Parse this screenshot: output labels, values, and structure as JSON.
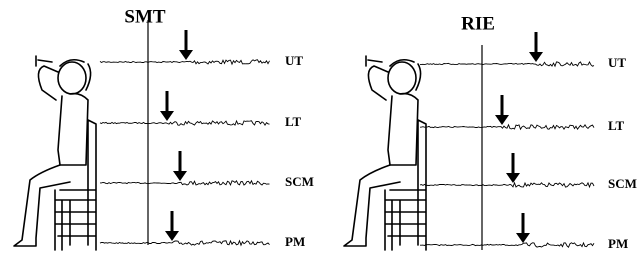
{
  "panels": [
    {
      "title": "SMT",
      "muscles": [
        "UT",
        "LT",
        "SCM",
        "PM"
      ]
    },
    {
      "title": "RIE",
      "muscles": [
        "UT",
        "LT",
        "SCM",
        "PM"
      ]
    }
  ]
}
